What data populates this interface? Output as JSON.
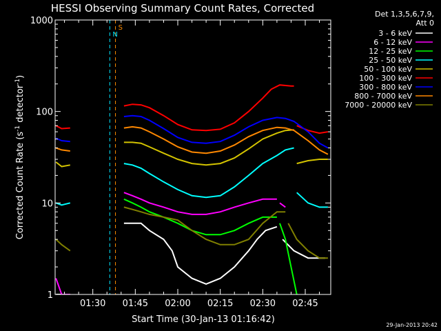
{
  "chart_data": {
    "type": "line",
    "title": "HESSI Observing Summary Count Rates, Corrected",
    "xlabel": "Start Time (30-Jan-13 01:16:42)",
    "ylabel_main": "Corrected Count Rate (s",
    "ylabel_sup1": "-1",
    "ylabel_mid": " detector",
    "ylabel_sup2": "-1",
    "ylabel_end": ")",
    "x_scale": "time",
    "y_scale": "log",
    "xlim": [
      "01:16:42",
      "02:54:00"
    ],
    "ylim": [
      1,
      1000
    ],
    "x_ticks": [
      "01:30",
      "01:45",
      "02:00",
      "02:15",
      "02:30",
      "02:45"
    ],
    "y_ticks": [
      "1",
      "10",
      "100",
      "1000"
    ],
    "legend_header": [
      "Det 1,3,5,6,7,9,",
      "Att 0"
    ],
    "legend_position": "right",
    "footer_timestamp": "29-Jan-2013 20:42",
    "markers": [
      {
        "label": "S",
        "time": "01:38:00",
        "color": "#ff8c00"
      },
      {
        "label": "N",
        "time": "01:36:00",
        "color": "#00e5ff"
      }
    ],
    "series": [
      {
        "name": "3 - 6 keV",
        "color": "#ffffff",
        "segments": [
          {
            "x": [
              "01:17",
              "01:21",
              "01:22"
            ],
            "y": [
              1.0,
              1.0,
              1.0
            ]
          },
          {
            "x": [
              "01:41",
              "01:44",
              "01:47",
              "01:50",
              "01:55",
              "01:58",
              "02:00",
              "02:05",
              "02:10",
              "02:15",
              "02:20",
              "02:25",
              "02:28",
              "02:31",
              "02:35"
            ],
            "y": [
              6,
              6,
              6,
              5,
              4,
              3,
              2,
              1.5,
              1.3,
              1.5,
              2,
              3,
              4,
              5,
              5.5
            ]
          },
          {
            "x": [
              "02:37",
              "02:41",
              "02:46",
              "02:50",
              "02:52"
            ],
            "y": [
              4,
              3,
              2.5,
              2.5,
              2.5
            ]
          }
        ]
      },
      {
        "name": "6 - 12 keV",
        "color": "#ff00ff",
        "segments": [
          {
            "x": [
              "01:17",
              "01:19",
              "01:22"
            ],
            "y": [
              1.5,
              1.0,
              1.0
            ]
          },
          {
            "x": [
              "01:41",
              "01:44",
              "01:47",
              "01:50",
              "01:55",
              "02:00",
              "02:05",
              "02:10",
              "02:15",
              "02:20",
              "02:25",
              "02:30",
              "02:35"
            ],
            "y": [
              13,
              12,
              11,
              10,
              9,
              8,
              7.5,
              7.5,
              8,
              9,
              10,
              11,
              11
            ]
          },
          {
            "x": [
              "02:36",
              "02:38"
            ],
            "y": [
              10,
              9
            ]
          }
        ]
      },
      {
        "name": "12 - 25 keV",
        "color": "#00ff00",
        "segments": [
          {
            "x": [
              "01:41",
              "01:44",
              "01:47",
              "01:50",
              "01:55",
              "02:00",
              "02:05",
              "02:10",
              "02:15",
              "02:20",
              "02:25",
              "02:30",
              "02:35"
            ],
            "y": [
              11,
              10,
              9,
              8,
              7,
              6,
              5,
              4.5,
              4.5,
              5,
              6,
              7,
              7
            ]
          },
          {
            "x": [
              "02:36",
              "02:38",
              "02:40",
              "02:42"
            ],
            "y": [
              6,
              4,
              2,
              1.0
            ]
          }
        ]
      },
      {
        "name": "25 - 50 keV",
        "color": "#00ffff",
        "segments": [
          {
            "x": [
              "01:17",
              "01:19",
              "01:22"
            ],
            "y": [
              10,
              9.5,
              10
            ]
          },
          {
            "x": [
              "01:41",
              "01:44",
              "01:47",
              "01:50",
              "01:55",
              "02:00",
              "02:05",
              "02:10",
              "02:15",
              "02:20",
              "02:25",
              "02:30",
              "02:35",
              "02:38",
              "02:41"
            ],
            "y": [
              27,
              26,
              24,
              21,
              17,
              14,
              12,
              11.5,
              12,
              15,
              20,
              27,
              33,
              38,
              40
            ]
          },
          {
            "x": [
              "02:42",
              "02:46",
              "02:50",
              "02:53"
            ],
            "y": [
              13,
              10,
              9,
              9
            ]
          }
        ]
      },
      {
        "name": "50 - 100 keV",
        "color": "#d4c400",
        "segments": [
          {
            "x": [
              "01:17",
              "01:19",
              "01:22"
            ],
            "y": [
              28,
              25,
              26
            ]
          },
          {
            "x": [
              "01:41",
              "01:44",
              "01:47",
              "01:50",
              "01:55",
              "02:00",
              "02:05",
              "02:10",
              "02:15",
              "02:20",
              "02:25",
              "02:30",
              "02:35",
              "02:38",
              "02:41"
            ],
            "y": [
              46,
              46,
              45,
              41,
              35,
              30,
              27,
              26,
              27,
              31,
              39,
              50,
              58,
              62,
              63
            ]
          },
          {
            "x": [
              "02:42",
              "02:46",
              "02:50",
              "02:53"
            ],
            "y": [
              27,
              29,
              30,
              30
            ]
          }
        ]
      },
      {
        "name": "100 - 300 keV",
        "color": "#ff0000",
        "segments": [
          {
            "x": [
              "01:17",
              "01:19",
              "01:22"
            ],
            "y": [
              70,
              65,
              66
            ]
          },
          {
            "x": [
              "01:41",
              "01:44",
              "01:47",
              "01:50",
              "01:55",
              "02:00",
              "02:05",
              "02:10",
              "02:15",
              "02:20",
              "02:25",
              "02:30",
              "02:33",
              "02:36",
              "02:40",
              "02:41"
            ],
            "y": [
              115,
              120,
              118,
              110,
              90,
              72,
              63,
              62,
              64,
              75,
              100,
              140,
              175,
              195,
              190,
              190
            ]
          },
          {
            "x": [
              "02:42",
              "02:46",
              "02:50",
              "02:53"
            ],
            "y": [
              70,
              62,
              58,
              60
            ]
          }
        ]
      },
      {
        "name": "300 - 800 keV",
        "color": "#0000ff",
        "segments": [
          {
            "x": [
              "01:17",
              "01:19",
              "01:22"
            ],
            "y": [
              51,
              48,
              47
            ]
          },
          {
            "x": [
              "01:41",
              "01:44",
              "01:47",
              "01:50",
              "01:55",
              "02:00",
              "02:05",
              "02:10",
              "02:15",
              "02:20",
              "02:25",
              "02:30",
              "02:35",
              "02:38",
              "02:41",
              "02:46",
              "02:50",
              "02:53"
            ],
            "y": [
              88,
              90,
              88,
              80,
              65,
              52,
              46,
              45,
              47,
              55,
              68,
              80,
              86,
              84,
              78,
              60,
              45,
              40
            ]
          }
        ]
      },
      {
        "name": "800 - 7000 keV",
        "color": "#ff8800",
        "segments": [
          {
            "x": [
              "01:17",
              "01:19",
              "01:22"
            ],
            "y": [
              40,
              38,
              37
            ]
          },
          {
            "x": [
              "01:41",
              "01:44",
              "01:47",
              "01:50",
              "01:55",
              "02:00",
              "02:05",
              "02:10",
              "02:15",
              "02:20",
              "02:25",
              "02:30",
              "02:35",
              "02:38",
              "02:41",
              "02:46",
              "02:50",
              "02:53"
            ],
            "y": [
              66,
              68,
              66,
              60,
              50,
              41,
              36,
              35,
              37,
              43,
              53,
              62,
              67,
              66,
              62,
              48,
              38,
              34
            ]
          }
        ]
      },
      {
        "name": "7000 - 20000 keV",
        "color": "#808000",
        "segments": [
          {
            "x": [
              "01:17",
              "01:19",
              "01:22"
            ],
            "y": [
              4,
              3.5,
              3
            ]
          },
          {
            "x": [
              "01:41",
              "01:44",
              "01:47",
              "01:50",
              "01:55",
              "02:00",
              "02:05",
              "02:10",
              "02:15",
              "02:20",
              "02:25",
              "02:30",
              "02:35",
              "02:38"
            ],
            "y": [
              9,
              8.5,
              8,
              7.5,
              7,
              6.5,
              5,
              4,
              3.5,
              3.5,
              4,
              6,
              8,
              8
            ]
          },
          {
            "x": [
              "02:39",
              "02:42",
              "02:46",
              "02:50",
              "02:53"
            ],
            "y": [
              6,
              4,
              3,
              2.5,
              2.5
            ]
          }
        ]
      }
    ]
  }
}
